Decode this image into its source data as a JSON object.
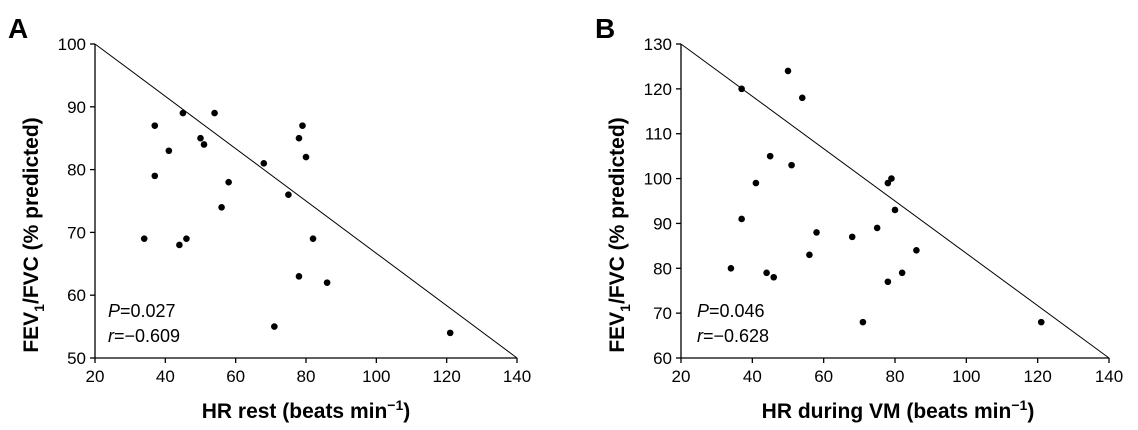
{
  "chart_data": [
    {
      "type": "scatter",
      "panel": "A",
      "xlabel": "HR rest (beats min",
      "xlabel_sup": "−1",
      "xlabel_close": ")",
      "ylabel_main": "FEV",
      "ylabel_sub": "1",
      "ylabel_rest": "/FVC (% predicted)",
      "xlim": [
        20,
        140
      ],
      "ylim": [
        50,
        100
      ],
      "xticks": [
        20,
        40,
        60,
        80,
        100,
        120,
        140
      ],
      "yticks": [
        50,
        60,
        70,
        80,
        90,
        100
      ],
      "p_label": "P",
      "p_value": "=0.027",
      "r_label": "r",
      "r_value": "=−0.609",
      "regression_line": {
        "x": [
          20,
          140
        ],
        "y": [
          100,
          50
        ]
      },
      "points": [
        {
          "x": 34,
          "y": 69
        },
        {
          "x": 37,
          "y": 87
        },
        {
          "x": 37,
          "y": 79
        },
        {
          "x": 41,
          "y": 83
        },
        {
          "x": 44,
          "y": 68
        },
        {
          "x": 45,
          "y": 89
        },
        {
          "x": 46,
          "y": 69
        },
        {
          "x": 50,
          "y": 85
        },
        {
          "x": 51,
          "y": 84
        },
        {
          "x": 54,
          "y": 89
        },
        {
          "x": 56,
          "y": 74
        },
        {
          "x": 58,
          "y": 78
        },
        {
          "x": 68,
          "y": 81
        },
        {
          "x": 71,
          "y": 55
        },
        {
          "x": 75,
          "y": 76
        },
        {
          "x": 78,
          "y": 85
        },
        {
          "x": 78,
          "y": 63
        },
        {
          "x": 79,
          "y": 87
        },
        {
          "x": 80,
          "y": 82
        },
        {
          "x": 82,
          "y": 69
        },
        {
          "x": 86,
          "y": 62
        },
        {
          "x": 121,
          "y": 54
        }
      ]
    },
    {
      "type": "scatter",
      "panel": "B",
      "xlabel": "HR during VM (beats min",
      "xlabel_sup": "−1",
      "xlabel_close": ")",
      "ylabel_main": "FEV",
      "ylabel_sub": "1",
      "ylabel_rest": "/FVC (% predicted)",
      "xlim": [
        20,
        140
      ],
      "ylim": [
        60,
        130
      ],
      "xticks": [
        20,
        40,
        60,
        80,
        100,
        120,
        140
      ],
      "yticks": [
        60,
        70,
        80,
        90,
        100,
        110,
        120,
        130
      ],
      "p_label": "P",
      "p_value": "=0.046",
      "r_label": "r",
      "r_value": "=−0.628",
      "regression_line": {
        "x": [
          20,
          140
        ],
        "y": [
          130,
          60
        ]
      },
      "points": [
        {
          "x": 34,
          "y": 80
        },
        {
          "x": 37,
          "y": 120
        },
        {
          "x": 37,
          "y": 91
        },
        {
          "x": 41,
          "y": 99
        },
        {
          "x": 44,
          "y": 79
        },
        {
          "x": 45,
          "y": 105
        },
        {
          "x": 46,
          "y": 78
        },
        {
          "x": 50,
          "y": 124
        },
        {
          "x": 51,
          "y": 103
        },
        {
          "x": 54,
          "y": 118
        },
        {
          "x": 56,
          "y": 83
        },
        {
          "x": 58,
          "y": 88
        },
        {
          "x": 68,
          "y": 87
        },
        {
          "x": 71,
          "y": 68
        },
        {
          "x": 75,
          "y": 89
        },
        {
          "x": 78,
          "y": 99
        },
        {
          "x": 78,
          "y": 77
        },
        {
          "x": 79,
          "y": 100
        },
        {
          "x": 80,
          "y": 93
        },
        {
          "x": 82,
          "y": 79
        },
        {
          "x": 86,
          "y": 84
        },
        {
          "x": 121,
          "y": 68
        }
      ]
    }
  ]
}
